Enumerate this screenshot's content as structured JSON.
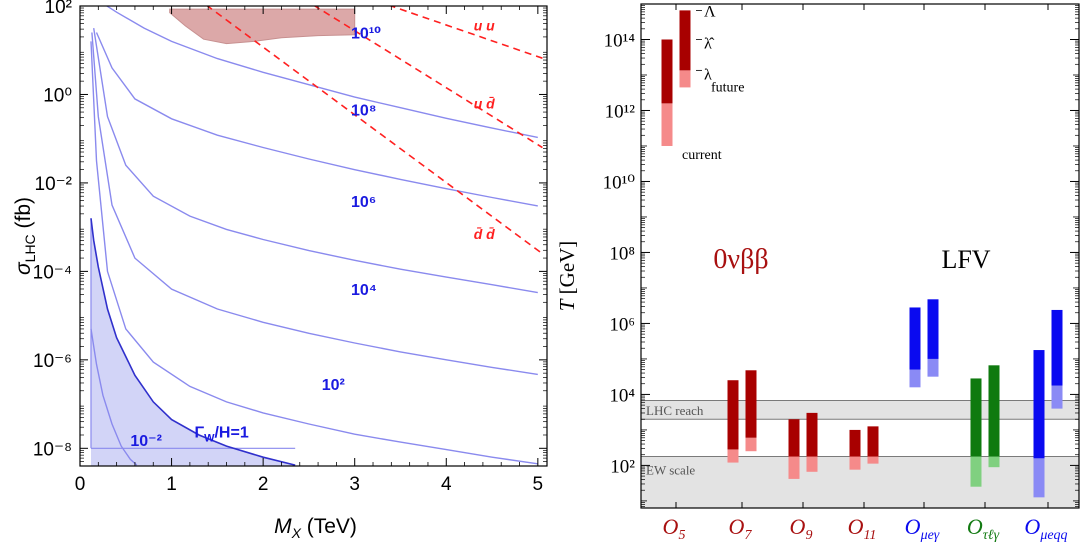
{
  "chart_data": [
    {
      "type": "line",
      "xlabel_main": "M",
      "xlabel_sub": "X",
      "xlabel_unit": " (TeV)",
      "ylabel_main": "σ",
      "ylabel_sub": "LHC",
      "ylabel_unit": " (fb)",
      "xlim": [
        0,
        5.1
      ],
      "ylim": [
        -8.4,
        2
      ],
      "yscale": "log",
      "xticks": [
        0,
        1,
        2,
        3,
        4,
        5
      ],
      "xtick_labels": [
        "0",
        "1",
        "2",
        "3",
        "4",
        "5"
      ],
      "yticks": [
        -8,
        -6,
        -4,
        -2,
        0,
        2
      ],
      "ytick_labels": [
        "10⁻⁸",
        "10⁻⁶",
        "10⁻⁴",
        "10⁻²",
        "10⁰",
        "10²"
      ],
      "colors": {
        "blue": "#3d3dff",
        "light_blue": "#8a8aee",
        "fill_blue": "#d2d4f7",
        "red": "#ff2020",
        "excluded": "#dca8a8"
      },
      "blue_curves": [
        {
          "label": "10¹⁰",
          "label_at": [
            2.96,
            1.27
          ],
          "points": [
            [
              0.22,
              2.1
            ],
            [
              0.4,
              1.86
            ],
            [
              0.7,
              1.5
            ],
            [
              1.0,
              1.2
            ],
            [
              1.5,
              0.81
            ],
            [
              2.0,
              0.5
            ],
            [
              2.5,
              0.22
            ],
            [
              3.0,
              -0.06
            ],
            [
              3.5,
              -0.3
            ],
            [
              4.0,
              -0.54
            ],
            [
              4.5,
              -0.76
            ],
            [
              5.0,
              -0.97
            ]
          ]
        },
        {
          "label": "10⁸",
          "label_at": [
            2.96,
            -0.47
          ],
          "points": [
            [
              0.18,
              1.4
            ],
            [
              0.35,
              0.6
            ],
            [
              0.6,
              -0.1
            ],
            [
              1.0,
              -0.55
            ],
            [
              1.5,
              -0.92
            ],
            [
              2.0,
              -1.2
            ],
            [
              2.5,
              -1.46
            ],
            [
              3.0,
              -1.7
            ],
            [
              3.5,
              -1.92
            ],
            [
              4.0,
              -2.13
            ],
            [
              4.5,
              -2.33
            ],
            [
              5.0,
              -2.52
            ]
          ]
        },
        {
          "label": "10⁶",
          "label_at": [
            2.96,
            -2.54
          ],
          "points": [
            [
              0.15,
              1.5
            ],
            [
              0.3,
              -0.5
            ],
            [
              0.5,
              -1.6
            ],
            [
              0.8,
              -2.3
            ],
            [
              1.2,
              -2.75
            ],
            [
              1.6,
              -3.05
            ],
            [
              2.0,
              -3.28
            ],
            [
              2.5,
              -3.53
            ],
            [
              3.0,
              -3.75
            ],
            [
              3.5,
              -3.95
            ],
            [
              4.0,
              -4.13
            ],
            [
              4.5,
              -4.3
            ],
            [
              5.0,
              -4.48
            ]
          ]
        },
        {
          "label": "10⁴",
          "label_at": [
            2.96,
            -4.53
          ],
          "points": [
            [
              0.13,
              1.4
            ],
            [
              0.2,
              -0.5
            ],
            [
              0.35,
              -2.5
            ],
            [
              0.6,
              -3.7
            ],
            [
              1.0,
              -4.4
            ],
            [
              1.5,
              -4.85
            ],
            [
              2.0,
              -5.15
            ],
            [
              2.5,
              -5.4
            ],
            [
              3.0,
              -5.62
            ],
            [
              3.5,
              -5.82
            ],
            [
              4.0,
              -6.0
            ],
            [
              4.5,
              -6.17
            ],
            [
              5.0,
              -6.33
            ]
          ]
        },
        {
          "label": "10²",
          "label_at": [
            2.64,
            -6.68
          ],
          "points": [
            [
              0.12,
              1.2
            ],
            [
              0.18,
              -1.5
            ],
            [
              0.3,
              -4.0
            ],
            [
              0.5,
              -5.3
            ],
            [
              0.8,
              -6.05
            ],
            [
              1.2,
              -6.6
            ],
            [
              1.6,
              -6.95
            ],
            [
              2.0,
              -7.2
            ],
            [
              2.5,
              -7.45
            ],
            [
              3.0,
              -7.68
            ],
            [
              3.5,
              -7.86
            ],
            [
              4.0,
              -8.03
            ],
            [
              4.5,
              -8.2
            ],
            [
              5.0,
              -8.35
            ]
          ]
        }
      ],
      "gamma_curve": {
        "label": "Γ",
        "label_sub": "W",
        "label_rest": "/H=1",
        "label_at": [
          1.25,
          -7.75
        ],
        "points": [
          [
            0.12,
            -2.8
          ],
          [
            0.15,
            -3.3
          ],
          [
            0.2,
            -3.9
          ],
          [
            0.3,
            -4.85
          ],
          [
            0.4,
            -5.5
          ],
          [
            0.6,
            -6.35
          ],
          [
            0.8,
            -6.95
          ],
          [
            1.0,
            -7.35
          ],
          [
            1.3,
            -7.7
          ],
          [
            1.6,
            -7.95
          ],
          [
            2.0,
            -8.2
          ],
          [
            2.35,
            -8.38
          ]
        ]
      },
      "small_curve": {
        "label": "10⁻²",
        "label_at": [
          0.55,
          -7.95
        ],
        "points": [
          [
            0.12,
            -5.3
          ],
          [
            0.18,
            -6.1
          ],
          [
            0.25,
            -6.8
          ],
          [
            0.35,
            -7.45
          ],
          [
            0.45,
            -7.95
          ],
          [
            0.55,
            -8.25
          ],
          [
            0.62,
            -8.38
          ]
        ]
      },
      "red_lines": [
        {
          "label": "u u",
          "label_at": [
            4.3,
            1.45
          ],
          "from": [
            3.37,
            2.02
          ],
          "to": [
            5.05,
            0.82
          ]
        },
        {
          "label": "u d̄",
          "label_at": [
            4.3,
            -0.32
          ],
          "from": [
            2.55,
            2.02
          ],
          "to": [
            5.05,
            -1.2
          ]
        },
        {
          "label": "d̄ d̄",
          "label_at": [
            4.3,
            -3.27
          ],
          "from": [
            1.38,
            2.02
          ],
          "to": [
            5.05,
            -3.6
          ]
        }
      ],
      "excluded_region": [
        [
          0.98,
          1.93
        ],
        [
          3.0,
          1.93
        ],
        [
          3.0,
          1.35
        ],
        [
          2.6,
          1.33
        ],
        [
          2.2,
          1.28
        ],
        [
          1.9,
          1.2
        ],
        [
          1.6,
          1.15
        ],
        [
          1.35,
          1.25
        ],
        [
          1.15,
          1.55
        ],
        [
          0.98,
          1.85
        ]
      ]
    },
    {
      "type": "bar",
      "ylabel_main": "T",
      "ylabel_unit": "  [GeV]",
      "yscale": "log",
      "ylim": [
        0.8,
        15
      ],
      "yticks": [
        2,
        4,
        6,
        8,
        10,
        12,
        14
      ],
      "ytick_labels": [
        "10²",
        "10⁴",
        "10⁶",
        "10⁸",
        "10¹⁰",
        "10¹²",
        "10¹⁴"
      ],
      "group_labels": {
        "0vbb": {
          "text": "0νββ",
          "color": "#a81010"
        },
        "lfv": {
          "text": "LFV",
          "color": "#000000"
        }
      },
      "bands": [
        {
          "label": "LHC reach",
          "lo": 3.3,
          "hi": 3.83
        },
        {
          "label": "EW scale",
          "lo": 0.8,
          "hi": 2.25
        }
      ],
      "categories": [
        {
          "name": "O",
          "sub": "5",
          "color": "#a81010"
        },
        {
          "name": "O",
          "sub": "7",
          "color": "#a81010"
        },
        {
          "name": "O",
          "sub": "9",
          "color": "#a81010"
        },
        {
          "name": "O",
          "sub": "11",
          "color": "#a81010"
        },
        {
          "name": "O",
          "sub": "μeγ",
          "color": "#0b0bee"
        },
        {
          "name": "O",
          "sub": "τℓγ",
          "color": "#127a12"
        },
        {
          "name": "O",
          "sub": "μeqq",
          "color": "#0b0bee"
        }
      ],
      "bars": [
        {
          "cat": 0,
          "slot": 0,
          "color": "dark_red",
          "current": [
            11.0,
            12.2
          ],
          "future": [
            12.2,
            14.0
          ]
        },
        {
          "cat": 0,
          "slot": 1,
          "color": "dark_red",
          "current": [
            12.65,
            13.13
          ],
          "future": [
            13.13,
            14.82
          ]
        },
        {
          "cat": 1,
          "slot": 0,
          "color": "dark_red",
          "current": [
            2.08,
            2.45
          ],
          "future": [
            2.45,
            4.4
          ]
        },
        {
          "cat": 1,
          "slot": 1,
          "color": "dark_red",
          "current": [
            2.4,
            2.78
          ],
          "future": [
            2.78,
            4.68
          ]
        },
        {
          "cat": 2,
          "slot": 0,
          "color": "dark_red",
          "current": [
            1.62,
            2.25
          ],
          "future": [
            2.25,
            3.3
          ]
        },
        {
          "cat": 2,
          "slot": 1,
          "color": "dark_red",
          "current": [
            1.82,
            2.25
          ],
          "future": [
            2.25,
            3.48
          ]
        },
        {
          "cat": 3,
          "slot": 0,
          "color": "dark_red",
          "current": [
            1.88,
            2.25
          ],
          "future": [
            2.25,
            3.0
          ]
        },
        {
          "cat": 3,
          "slot": 1,
          "color": "dark_red",
          "current": [
            2.05,
            2.25
          ],
          "future": [
            2.25,
            3.1
          ]
        },
        {
          "cat": 4,
          "slot": 0,
          "color": "blue",
          "current": [
            4.2,
            4.7
          ],
          "future": [
            4.7,
            6.45
          ]
        },
        {
          "cat": 4,
          "slot": 1,
          "color": "blue",
          "current": [
            4.5,
            5.0
          ],
          "future": [
            5.0,
            6.68
          ]
        },
        {
          "cat": 5,
          "slot": 0,
          "color": "green",
          "current": [
            1.4,
            2.25
          ],
          "future": [
            2.25,
            4.45
          ]
        },
        {
          "cat": 5,
          "slot": 1,
          "color": "green",
          "current": [
            1.95,
            2.25
          ],
          "future": [
            2.25,
            4.82
          ]
        },
        {
          "cat": 6,
          "slot": 0,
          "color": "blue",
          "current": [
            1.1,
            2.2
          ],
          "future": [
            2.2,
            5.25
          ]
        },
        {
          "cat": 6,
          "slot": 1,
          "color": "blue",
          "current": [
            3.6,
            4.25
          ],
          "future": [
            4.25,
            6.38
          ]
        }
      ],
      "legend": {
        "labels": {
          "Lambda": "Λ",
          "lambda_hat": "λ̂",
          "lambda": "λ",
          "future": "future",
          "current": "current"
        }
      },
      "palette": {
        "dark_red": {
          "dark": "#a80000",
          "light": "#f58a8a"
        },
        "blue": {
          "dark": "#0a0af0",
          "light": "#8a8af5"
        },
        "green": {
          "dark": "#0f7a0f",
          "light": "#80d080"
        }
      }
    }
  ]
}
